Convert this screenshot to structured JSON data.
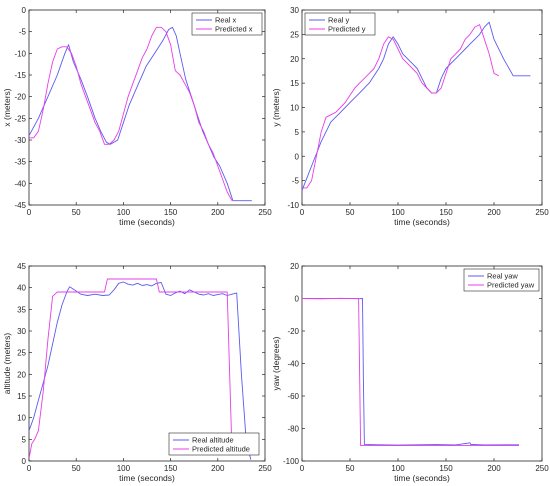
{
  "chart_data": [
    {
      "type": "line",
      "xlabel": "time (seconds)",
      "ylabel": "x (meters)",
      "xlim": [
        0,
        250
      ],
      "ylim": [
        -45,
        0
      ],
      "xticks": [
        0,
        50,
        100,
        150,
        200,
        250
      ],
      "yticks": [
        -45,
        -40,
        -35,
        -30,
        -25,
        -20,
        -15,
        -10,
        -5,
        0
      ],
      "legend_position": "top-right",
      "series": [
        {
          "name": "Real x",
          "color": "#5b5bf0",
          "style": "solid",
          "x": [
            0,
            10,
            20,
            30,
            38,
            42,
            47,
            55,
            62,
            70,
            76,
            82,
            86,
            90,
            94,
            100,
            106,
            112,
            118,
            124,
            130,
            136,
            142,
            148,
            152,
            156,
            160,
            166,
            172,
            178,
            184,
            190,
            196,
            202,
            210,
            216,
            222,
            230,
            236
          ],
          "y": [
            -29,
            -25,
            -20,
            -15,
            -10,
            -8,
            -12,
            -16,
            -20,
            -25,
            -28,
            -30.5,
            -31,
            -30.5,
            -30,
            -26,
            -22,
            -19,
            -16,
            -13,
            -11,
            -9,
            -7,
            -4.5,
            -4,
            -6,
            -10,
            -16,
            -20,
            -24,
            -28,
            -31,
            -34,
            -36,
            -40,
            -44,
            -44,
            -44,
            -44
          ]
        },
        {
          "name": "Predicted x",
          "color": "#e83de8",
          "style": "solid",
          "x": [
            0,
            5,
            10,
            15,
            20,
            25,
            30,
            35,
            40,
            45,
            50,
            55,
            60,
            65,
            70,
            75,
            80,
            85,
            90,
            95,
            100,
            105,
            110,
            115,
            120,
            125,
            130,
            135,
            140,
            145,
            150,
            155,
            160,
            165,
            170,
            175,
            180,
            185,
            190,
            195,
            200,
            205,
            210,
            215
          ],
          "y": [
            -29.5,
            -29.5,
            -28,
            -23,
            -17,
            -12,
            -9,
            -8.5,
            -8.5,
            -10,
            -13,
            -17,
            -20,
            -23,
            -26,
            -28,
            -31,
            -31,
            -30,
            -28,
            -24,
            -20,
            -17,
            -14,
            -11,
            -9,
            -6,
            -4,
            -4,
            -5,
            -8,
            -14,
            -15,
            -17,
            -19,
            -22,
            -26,
            -28,
            -31,
            -33,
            -36,
            -39,
            -42,
            -44
          ]
        }
      ]
    },
    {
      "type": "line",
      "xlabel": "time (seconds)",
      "ylabel": "y (meters)",
      "xlim": [
        0,
        250
      ],
      "ylim": [
        -10,
        30
      ],
      "xticks": [
        0,
        50,
        100,
        150,
        200,
        250
      ],
      "yticks": [
        -10,
        -5,
        0,
        5,
        10,
        15,
        20,
        25,
        30
      ],
      "legend_position": "top-left",
      "series": [
        {
          "name": "Real y",
          "color": "#5b5bf0",
          "style": "solid",
          "x": [
            0,
            10,
            20,
            30,
            40,
            50,
            60,
            70,
            80,
            85,
            90,
            95,
            100,
            105,
            110,
            115,
            120,
            125,
            130,
            135,
            140,
            145,
            150,
            155,
            160,
            165,
            170,
            175,
            180,
            185,
            190,
            195,
            200,
            210,
            220,
            230,
            238
          ],
          "y": [
            -7,
            -2,
            3,
            7,
            9,
            11,
            13,
            15,
            18,
            20,
            23,
            24.5,
            23,
            21,
            20,
            19,
            18,
            16,
            14,
            13,
            13,
            16,
            18,
            19,
            20,
            21,
            22,
            23,
            24,
            25,
            26.5,
            27.5,
            24,
            20,
            16.5,
            16.5,
            16.5
          ]
        },
        {
          "name": "Predicted y",
          "color": "#e83de8",
          "style": "solid",
          "x": [
            0,
            5,
            10,
            15,
            20,
            25,
            30,
            35,
            40,
            45,
            50,
            55,
            60,
            65,
            70,
            75,
            80,
            85,
            90,
            95,
            100,
            105,
            110,
            115,
            120,
            125,
            130,
            135,
            140,
            145,
            150,
            155,
            160,
            165,
            170,
            175,
            180,
            185,
            190,
            195,
            200,
            205
          ],
          "y": [
            -6.5,
            -6.5,
            -5,
            0,
            5,
            8,
            8.5,
            9,
            10,
            11,
            12.5,
            14,
            15,
            16,
            17,
            18,
            20,
            23,
            24.5,
            24,
            22,
            20,
            19,
            18,
            17,
            15,
            14,
            13,
            13,
            14,
            17,
            20,
            21,
            22,
            24,
            25,
            26.5,
            27,
            24,
            21,
            17,
            16.5
          ]
        }
      ]
    },
    {
      "type": "line",
      "xlabel": "time (seconds)",
      "ylabel": "altitude (meters)",
      "xlim": [
        0,
        250
      ],
      "ylim": [
        0,
        45
      ],
      "xticks": [
        0,
        50,
        100,
        150,
        200,
        250
      ],
      "yticks": [
        0,
        5,
        10,
        15,
        20,
        25,
        30,
        35,
        40,
        45
      ],
      "legend_position": "bottom-right",
      "series": [
        {
          "name": "Real altitude",
          "color": "#5b5bf0",
          "style": "solid",
          "x": [
            0,
            5,
            10,
            15,
            20,
            25,
            30,
            35,
            40,
            43,
            48,
            55,
            62,
            70,
            78,
            85,
            90,
            95,
            100,
            105,
            110,
            115,
            120,
            125,
            130,
            135,
            140,
            145,
            150,
            155,
            160,
            165,
            170,
            175,
            180,
            185,
            190,
            195,
            200,
            205,
            210,
            215,
            220,
            225,
            230,
            235
          ],
          "y": [
            7,
            10,
            14,
            18,
            22,
            27,
            32,
            36,
            39,
            40.2,
            39.5,
            38.5,
            38.2,
            38.5,
            38.2,
            38.3,
            39.5,
            41,
            41.3,
            40.8,
            40.6,
            41.0,
            40.5,
            40.7,
            40.4,
            41.0,
            41.2,
            38.5,
            38.2,
            38.8,
            39.2,
            38.6,
            39.5,
            39.0,
            38.5,
            38.3,
            38.6,
            38.2,
            38.4,
            38.6,
            38.2,
            38.5,
            38.8,
            20,
            5,
            0.3
          ]
        },
        {
          "name": "Predicted altitude",
          "color": "#e83de8",
          "style": "solid",
          "x": [
            0,
            3,
            6,
            10,
            15,
            20,
            25,
            30,
            33,
            40,
            50,
            60,
            70,
            80,
            83,
            90,
            100,
            110,
            120,
            130,
            135,
            138,
            145,
            155,
            165,
            175,
            185,
            195,
            205,
            210,
            215
          ],
          "y": [
            0.5,
            4,
            5,
            7,
            16,
            28,
            38,
            39,
            39,
            39,
            39,
            39,
            39,
            39,
            42,
            42,
            42,
            42,
            42,
            42,
            42,
            39,
            39,
            39,
            39,
            39,
            39,
            39,
            39,
            39,
            2
          ]
        }
      ]
    },
    {
      "type": "line",
      "xlabel": "time (seconds)",
      "ylabel": "yaw (degrees)",
      "xlim": [
        0,
        250
      ],
      "ylim": [
        -100,
        20
      ],
      "xticks": [
        0,
        50,
        100,
        150,
        200,
        250
      ],
      "yticks": [
        -100,
        -80,
        -60,
        -40,
        -20,
        0,
        20
      ],
      "legend_position": "top-right",
      "series": [
        {
          "name": "Real yaw",
          "color": "#5b5bf0",
          "style": "solid",
          "x": [
            0,
            20,
            40,
            60,
            63,
            64,
            65,
            80,
            100,
            120,
            140,
            160,
            175,
            176,
            177,
            190,
            210,
            226
          ],
          "y": [
            0,
            -0.2,
            0.1,
            -0.1,
            0,
            -50,
            -89.8,
            -90,
            -90.2,
            -90,
            -89.9,
            -90.1,
            -88.8,
            -90,
            -89.8,
            -90.1,
            -90,
            -90
          ]
        },
        {
          "name": "Predicted yaw",
          "color": "#e83de8",
          "style": "solid",
          "x": [
            0,
            59,
            60,
            61,
            100,
            150,
            200,
            226
          ],
          "y": [
            0,
            0,
            -45,
            -90.5,
            -90.5,
            -90.5,
            -90.5,
            -90.5
          ]
        }
      ]
    }
  ]
}
